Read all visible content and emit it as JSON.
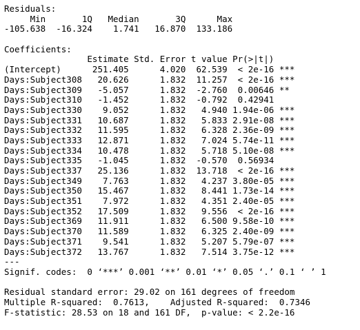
{
  "residuals": {
    "title": "Residuals:",
    "header": "     Min       1Q   Median       3Q      Max ",
    "values": "-105.638  -16.324    1.741   16.870  133.186 "
  },
  "coefficients": {
    "title": "Coefficients:",
    "header": "                Estimate Std. Error t value Pr(>|t|)    ",
    "rows": [
      "(Intercept)      251.405      4.020  62.539  < 2e-16 ***",
      "Days:Subject308   20.626      1.832  11.257  < 2e-16 ***",
      "Days:Subject309   -5.057      1.832  -2.760  0.00646 ** ",
      "Days:Subject310   -1.452      1.832  -0.792  0.42941    ",
      "Days:Subject330    9.052      1.832   4.940 1.94e-06 ***",
      "Days:Subject331   10.687      1.832   5.833 2.91e-08 ***",
      "Days:Subject332   11.595      1.832   6.328 2.36e-09 ***",
      "Days:Subject333   12.871      1.832   7.024 5.74e-11 ***",
      "Days:Subject334   10.478      1.832   5.718 5.10e-08 ***",
      "Days:Subject335   -1.045      1.832  -0.570  0.56934    ",
      "Days:Subject337   25.136      1.832  13.718  < 2e-16 ***",
      "Days:Subject349    7.763      1.832   4.237 3.80e-05 ***",
      "Days:Subject350   15.467      1.832   8.441 1.73e-14 ***",
      "Days:Subject351    7.972      1.832   4.351 2.40e-05 ***",
      "Days:Subject352   17.509      1.832   9.556  < 2e-16 ***",
      "Days:Subject369   11.911      1.832   6.500 9.58e-10 ***",
      "Days:Subject370   11.589      1.832   6.325 2.40e-09 ***",
      "Days:Subject371    9.541      1.832   5.207 5.79e-07 ***",
      "Days:Subject372   13.767      1.832   7.514 3.75e-12 ***"
    ],
    "separator": "---",
    "signif_codes": "Signif. codes:  0 ‘***’ 0.001 ‘**’ 0.01 ‘*’ 0.05 ‘.’ 0.1 ‘ ’ 1"
  },
  "summary": {
    "residual_se": "Residual standard error: 29.02 on 161 degrees of freedom",
    "r_squared": "Multiple R-squared:  0.7613,\tAdjusted R-squared:  0.7346 ",
    "f_statistic": "F-statistic: 28.53 on 18 and 161 DF,  p-value: < 2.2e-16"
  }
}
